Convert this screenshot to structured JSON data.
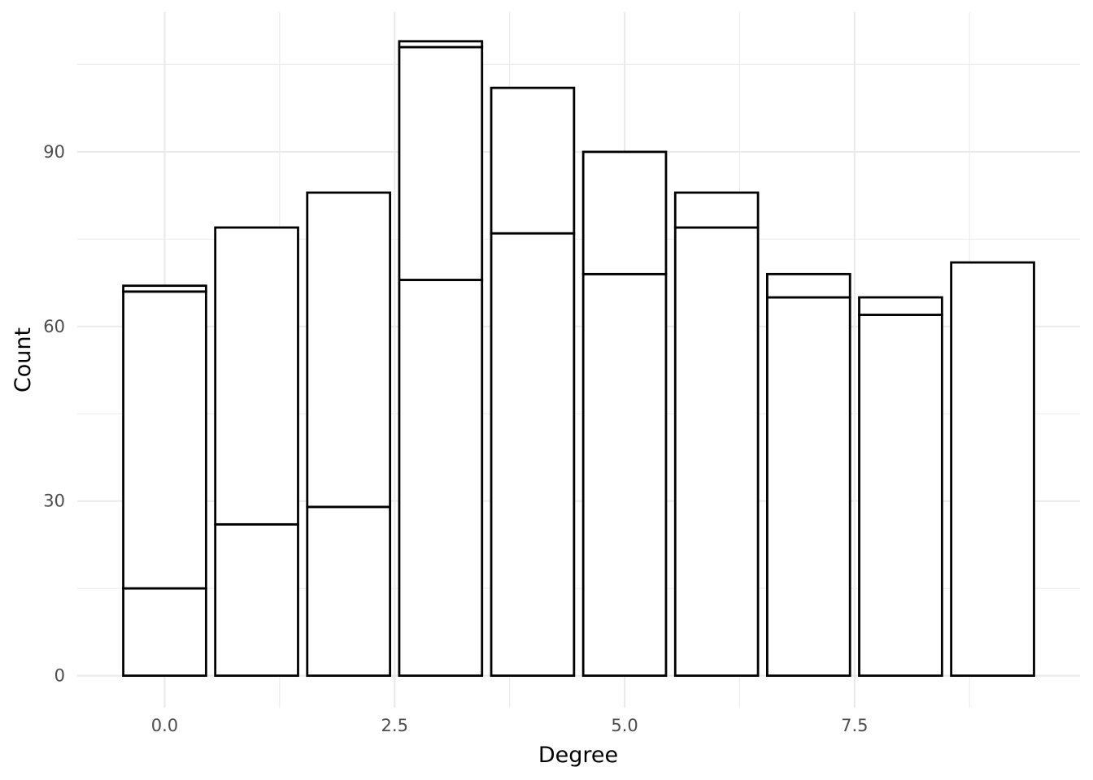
{
  "chart_data": {
    "type": "bar",
    "stacked": true,
    "title": "",
    "xlabel": "Degree",
    "ylabel": "Count",
    "x_ticks": [
      0.0,
      2.5,
      5.0,
      7.5
    ],
    "x_tick_labels": [
      "0.0",
      "2.5",
      "5.0",
      "7.5"
    ],
    "y_ticks": [
      0,
      30,
      60,
      90
    ],
    "y_tick_labels": [
      "0",
      "30",
      "60",
      "90"
    ],
    "xlim": [
      -0.95,
      9.95
    ],
    "ylim": [
      -5.5,
      114
    ],
    "grid": true,
    "legend": "none",
    "colors": {
      "fill": "#ffffff",
      "outline": "#000000",
      "grid": "#ebebeb",
      "tick_text": "#4d4d4d"
    },
    "categories": [
      0,
      1,
      2,
      3,
      4,
      5,
      6,
      7,
      8,
      9
    ],
    "bars": [
      {
        "x": 0,
        "stack_boundaries": [
          0,
          15,
          66,
          67
        ]
      },
      {
        "x": 1,
        "stack_boundaries": [
          0,
          26,
          77
        ]
      },
      {
        "x": 2,
        "stack_boundaries": [
          0,
          29,
          83
        ]
      },
      {
        "x": 3,
        "stack_boundaries": [
          0,
          68,
          108,
          109
        ]
      },
      {
        "x": 4,
        "stack_boundaries": [
          0,
          76,
          101
        ]
      },
      {
        "x": 5,
        "stack_boundaries": [
          0,
          69,
          90
        ]
      },
      {
        "x": 6,
        "stack_boundaries": [
          0,
          77,
          83
        ]
      },
      {
        "x": 7,
        "stack_boundaries": [
          0,
          65,
          69
        ]
      },
      {
        "x": 8,
        "stack_boundaries": [
          0,
          62,
          65
        ]
      },
      {
        "x": 9,
        "stack_boundaries": [
          0,
          71
        ]
      }
    ],
    "totals": [
      67,
      77,
      83,
      109,
      101,
      90,
      83,
      69,
      65,
      71
    ]
  }
}
